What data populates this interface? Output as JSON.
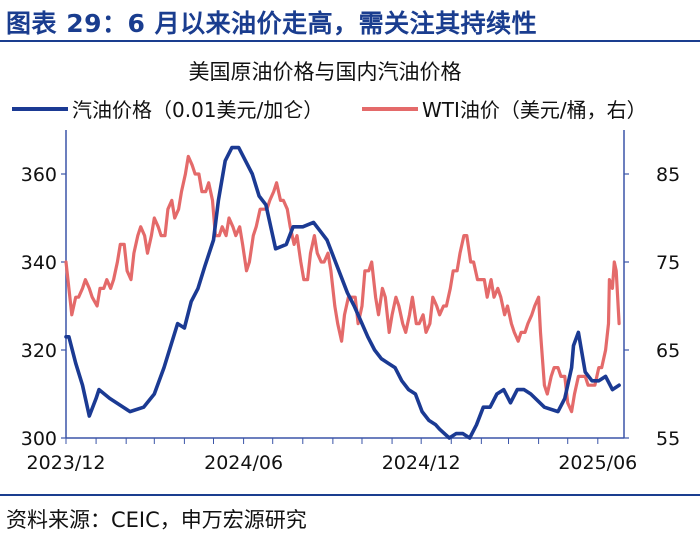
{
  "header": {
    "figure_title": "图表 29：6 月以来油价走高，需关注其持续性",
    "source": "资料来源：CEIC，申万宏源研究"
  },
  "colors": {
    "gasoline": "#1b3a93",
    "wti": "#e46a6a",
    "axis": "#3b55a8",
    "title": "#1a3d8f"
  },
  "chart_data": {
    "type": "line",
    "title": "美国原油价格与国内汽油价格",
    "legend_position": "top",
    "grid": false,
    "x_axis": {
      "type": "date",
      "range": [
        "2023-12-01",
        "2025-06-28"
      ],
      "ticks": [
        "2023/12",
        "2024/06",
        "2024/12",
        "2025/06"
      ]
    },
    "y_left": {
      "range": [
        300,
        370
      ],
      "ticks": [
        300,
        320,
        340,
        360
      ]
    },
    "y_right": {
      "range": [
        55,
        90
      ],
      "ticks": [
        55,
        65,
        75,
        85
      ]
    },
    "series": [
      {
        "name": "汽油价格（0.01美元/加仑）",
        "axis": "left",
        "points": [
          [
            "2023-12-01",
            323
          ],
          [
            "2023-12-04",
            323
          ],
          [
            "2023-12-11",
            317
          ],
          [
            "2023-12-18",
            312
          ],
          [
            "2023-12-25",
            305
          ],
          [
            "2024-01-01",
            309
          ],
          [
            "2024-01-04",
            311
          ],
          [
            "2024-01-15",
            309
          ],
          [
            "2024-01-29",
            307
          ],
          [
            "2024-02-05",
            306
          ],
          [
            "2024-02-19",
            307
          ],
          [
            "2024-03-01",
            310
          ],
          [
            "2024-03-11",
            316
          ],
          [
            "2024-03-25",
            326
          ],
          [
            "2024-04-01",
            325
          ],
          [
            "2024-04-08",
            331
          ],
          [
            "2024-04-15",
            334
          ],
          [
            "2024-04-22",
            339
          ],
          [
            "2024-05-01",
            345
          ],
          [
            "2024-05-06",
            354
          ],
          [
            "2024-05-13",
            363
          ],
          [
            "2024-05-20",
            366
          ],
          [
            "2024-05-27",
            366
          ],
          [
            "2024-06-03",
            363
          ],
          [
            "2024-06-10",
            360
          ],
          [
            "2024-06-17",
            355
          ],
          [
            "2024-06-24",
            353
          ],
          [
            "2024-07-01",
            346
          ],
          [
            "2024-07-04",
            343
          ],
          [
            "2024-07-15",
            344
          ],
          [
            "2024-07-22",
            348
          ],
          [
            "2024-08-01",
            348
          ],
          [
            "2024-08-12",
            349
          ],
          [
            "2024-08-19",
            347
          ],
          [
            "2024-08-26",
            345
          ],
          [
            "2024-09-02",
            341
          ],
          [
            "2024-09-09",
            337
          ],
          [
            "2024-09-16",
            333
          ],
          [
            "2024-09-23",
            330
          ],
          [
            "2024-10-01",
            326
          ],
          [
            "2024-10-07",
            323
          ],
          [
            "2024-10-14",
            320
          ],
          [
            "2024-10-21",
            318
          ],
          [
            "2024-10-28",
            317
          ],
          [
            "2024-11-04",
            316
          ],
          [
            "2024-11-11",
            313
          ],
          [
            "2024-11-18",
            311
          ],
          [
            "2024-11-25",
            310
          ],
          [
            "2024-12-02",
            306
          ],
          [
            "2024-12-09",
            304
          ],
          [
            "2024-12-16",
            303
          ],
          [
            "2024-12-20",
            302
          ],
          [
            "2024-12-30",
            300
          ],
          [
            "2025-01-06",
            301
          ],
          [
            "2025-01-13",
            301
          ],
          [
            "2025-01-20",
            300
          ],
          [
            "2025-01-27",
            303
          ],
          [
            "2025-02-03",
            307
          ],
          [
            "2025-02-10",
            307
          ],
          [
            "2025-02-17",
            310
          ],
          [
            "2025-02-24",
            311
          ],
          [
            "2025-03-03",
            308
          ],
          [
            "2025-03-10",
            311
          ],
          [
            "2025-03-17",
            311
          ],
          [
            "2025-03-24",
            310
          ],
          [
            "2025-04-07",
            307
          ],
          [
            "2025-04-21",
            306
          ],
          [
            "2025-04-28",
            309
          ],
          [
            "2025-05-01",
            312
          ],
          [
            "2025-05-05",
            316
          ],
          [
            "2025-05-07",
            321
          ],
          [
            "2025-05-12",
            324
          ],
          [
            "2025-05-19",
            315
          ],
          [
            "2025-05-26",
            313
          ],
          [
            "2025-06-02",
            313
          ],
          [
            "2025-06-09",
            314
          ],
          [
            "2025-06-16",
            311
          ],
          [
            "2025-06-23",
            312
          ]
        ]
      },
      {
        "name": "WTI油价（美元/桶，右）",
        "axis": "right",
        "points": [
          [
            "2023-12-01",
            75
          ],
          [
            "2023-12-04",
            72
          ],
          [
            "2023-12-07",
            69
          ],
          [
            "2023-12-11",
            71
          ],
          [
            "2023-12-14",
            71
          ],
          [
            "2023-12-18",
            72
          ],
          [
            "2023-12-21",
            73
          ],
          [
            "2023-12-25",
            72
          ],
          [
            "2023-12-28",
            71
          ],
          [
            "2024-01-02",
            70
          ],
          [
            "2024-01-05",
            72
          ],
          [
            "2024-01-09",
            72
          ],
          [
            "2024-01-12",
            73
          ],
          [
            "2024-01-16",
            72
          ],
          [
            "2024-01-19",
            73
          ],
          [
            "2024-01-23",
            75
          ],
          [
            "2024-01-26",
            77
          ],
          [
            "2024-01-30",
            77
          ],
          [
            "2024-02-02",
            74
          ],
          [
            "2024-02-06",
            73
          ],
          [
            "2024-02-09",
            76
          ],
          [
            "2024-02-13",
            78
          ],
          [
            "2024-02-16",
            79
          ],
          [
            "2024-02-20",
            78
          ],
          [
            "2024-02-23",
            76
          ],
          [
            "2024-02-27",
            78
          ],
          [
            "2024-03-01",
            80
          ],
          [
            "2024-03-05",
            79
          ],
          [
            "2024-03-08",
            78
          ],
          [
            "2024-03-12",
            78
          ],
          [
            "2024-03-15",
            81
          ],
          [
            "2024-03-19",
            82
          ],
          [
            "2024-03-22",
            80
          ],
          [
            "2024-03-26",
            81
          ],
          [
            "2024-03-29",
            83
          ],
          [
            "2024-04-02",
            85
          ],
          [
            "2024-04-05",
            87
          ],
          [
            "2024-04-09",
            86
          ],
          [
            "2024-04-12",
            85
          ],
          [
            "2024-04-16",
            85
          ],
          [
            "2024-04-19",
            83
          ],
          [
            "2024-04-23",
            83
          ],
          [
            "2024-04-26",
            84
          ],
          [
            "2024-04-30",
            82
          ],
          [
            "2024-05-03",
            78
          ],
          [
            "2024-05-07",
            78
          ],
          [
            "2024-05-10",
            79
          ],
          [
            "2024-05-14",
            78
          ],
          [
            "2024-05-17",
            80
          ],
          [
            "2024-05-21",
            79
          ],
          [
            "2024-05-24",
            78
          ],
          [
            "2024-05-28",
            79
          ],
          [
            "2024-05-31",
            77
          ],
          [
            "2024-06-04",
            74
          ],
          [
            "2024-06-07",
            75
          ],
          [
            "2024-06-11",
            78
          ],
          [
            "2024-06-14",
            79
          ],
          [
            "2024-06-18",
            81
          ],
          [
            "2024-06-21",
            81
          ],
          [
            "2024-06-25",
            81
          ],
          [
            "2024-06-28",
            82
          ],
          [
            "2024-07-02",
            83
          ],
          [
            "2024-07-05",
            84
          ],
          [
            "2024-07-09",
            82
          ],
          [
            "2024-07-12",
            82
          ],
          [
            "2024-07-16",
            81
          ],
          [
            "2024-07-19",
            79
          ],
          [
            "2024-07-23",
            77
          ],
          [
            "2024-07-26",
            78
          ],
          [
            "2024-07-30",
            75
          ],
          [
            "2024-08-02",
            73
          ],
          [
            "2024-08-06",
            73
          ],
          [
            "2024-08-09",
            76
          ],
          [
            "2024-08-13",
            78
          ],
          [
            "2024-08-16",
            76
          ],
          [
            "2024-08-20",
            75
          ],
          [
            "2024-08-23",
            75
          ],
          [
            "2024-08-27",
            76
          ],
          [
            "2024-08-30",
            74
          ],
          [
            "2024-09-03",
            70
          ],
          [
            "2024-09-06",
            68
          ],
          [
            "2024-09-10",
            66
          ],
          [
            "2024-09-13",
            69
          ],
          [
            "2024-09-17",
            71
          ],
          [
            "2024-09-20",
            71
          ],
          [
            "2024-09-24",
            71
          ],
          [
            "2024-09-27",
            68
          ],
          [
            "2024-10-01",
            70
          ],
          [
            "2024-10-04",
            74
          ],
          [
            "2024-10-08",
            74
          ],
          [
            "2024-10-11",
            75
          ],
          [
            "2024-10-15",
            71
          ],
          [
            "2024-10-18",
            69
          ],
          [
            "2024-10-22",
            72
          ],
          [
            "2024-10-25",
            71
          ],
          [
            "2024-10-29",
            67
          ],
          [
            "2024-11-01",
            69
          ],
          [
            "2024-11-05",
            71
          ],
          [
            "2024-11-08",
            70
          ],
          [
            "2024-11-12",
            68
          ],
          [
            "2024-11-15",
            67
          ],
          [
            "2024-11-19",
            69
          ],
          [
            "2024-11-22",
            71
          ],
          [
            "2024-11-26",
            68
          ],
          [
            "2024-11-29",
            68
          ],
          [
            "2024-12-03",
            69
          ],
          [
            "2024-12-06",
            67
          ],
          [
            "2024-12-10",
            68
          ],
          [
            "2024-12-13",
            71
          ],
          [
            "2024-12-17",
            70
          ],
          [
            "2024-12-20",
            69
          ],
          [
            "2024-12-24",
            70
          ],
          [
            "2024-12-27",
            70
          ],
          [
            "2024-12-31",
            72
          ],
          [
            "2025-01-03",
            74
          ],
          [
            "2025-01-07",
            74
          ],
          [
            "2025-01-10",
            76
          ],
          [
            "2025-01-14",
            78
          ],
          [
            "2025-01-17",
            78
          ],
          [
            "2025-01-21",
            75
          ],
          [
            "2025-01-24",
            75
          ],
          [
            "2025-01-28",
            73
          ],
          [
            "2025-01-31",
            73
          ],
          [
            "2025-02-04",
            73
          ],
          [
            "2025-02-07",
            71
          ],
          [
            "2025-02-11",
            73
          ],
          [
            "2025-02-14",
            71
          ],
          [
            "2025-02-18",
            72
          ],
          [
            "2025-02-21",
            71
          ],
          [
            "2025-02-25",
            69
          ],
          [
            "2025-02-28",
            70
          ],
          [
            "2025-03-04",
            68
          ],
          [
            "2025-03-07",
            67
          ],
          [
            "2025-03-11",
            66
          ],
          [
            "2025-03-14",
            67
          ],
          [
            "2025-03-18",
            67
          ],
          [
            "2025-03-21",
            68
          ],
          [
            "2025-03-25",
            69
          ],
          [
            "2025-03-28",
            70
          ],
          [
            "2025-04-01",
            71
          ],
          [
            "2025-04-03",
            67
          ],
          [
            "2025-04-07",
            61
          ],
          [
            "2025-04-10",
            60
          ],
          [
            "2025-04-14",
            62
          ],
          [
            "2025-04-17",
            63
          ],
          [
            "2025-04-21",
            63
          ],
          [
            "2025-04-24",
            62
          ],
          [
            "2025-04-28",
            62
          ],
          [
            "2025-05-01",
            59
          ],
          [
            "2025-05-05",
            58
          ],
          [
            "2025-05-08",
            60
          ],
          [
            "2025-05-12",
            62
          ],
          [
            "2025-05-15",
            62
          ],
          [
            "2025-05-19",
            62
          ],
          [
            "2025-05-22",
            61
          ],
          [
            "2025-05-26",
            61
          ],
          [
            "2025-05-29",
            61
          ],
          [
            "2025-06-02",
            63
          ],
          [
            "2025-06-05",
            63
          ],
          [
            "2025-06-09",
            65
          ],
          [
            "2025-06-12",
            68
          ],
          [
            "2025-06-13",
            73
          ],
          [
            "2025-06-16",
            72
          ],
          [
            "2025-06-18",
            75
          ],
          [
            "2025-06-20",
            74
          ],
          [
            "2025-06-23",
            68
          ]
        ]
      }
    ]
  }
}
